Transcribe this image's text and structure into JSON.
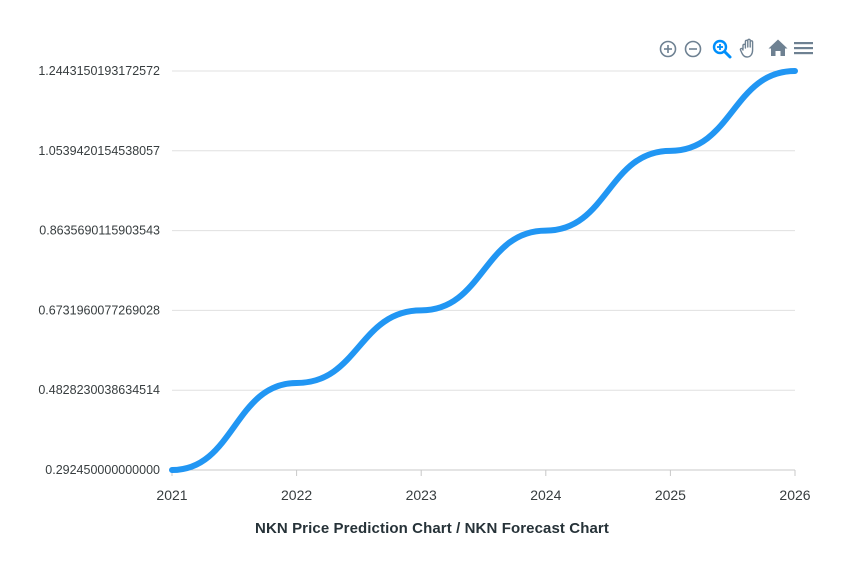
{
  "toolbar": {
    "buttons": [
      {
        "icon": "zoom-in-icon",
        "color": "#6e8192"
      },
      {
        "icon": "zoom-out-icon",
        "color": "#6e8192"
      },
      {
        "icon": "selection-zoom-icon",
        "color": "#008ffb"
      },
      {
        "icon": "pan-hand-icon",
        "color": "#6e8192"
      },
      {
        "icon": "reset-home-icon",
        "color": "#6e8192"
      },
      {
        "icon": "menu-icon",
        "color": "#6e8192"
      }
    ]
  },
  "chart_data": {
    "type": "line",
    "title": "NKN Price Prediction Chart / NKN Forecast Chart",
    "xlabel": "",
    "ylabel": "",
    "x_ticks": [
      "2021",
      "2022",
      "2023",
      "2024",
      "2025",
      "2026"
    ],
    "y_ticks": [
      "0.292450000000000",
      "0.4828230038634514",
      "0.6731960077269028",
      "0.8635690115903543",
      "1.0539420154538057",
      "1.2443150193172572"
    ],
    "ylim": [
      0.29245,
      1.2443150193172572
    ],
    "xlim": [
      2021,
      2026
    ],
    "grid": "horizontal",
    "legend": "none",
    "line_color": "#2196f3",
    "series": [
      {
        "x": [
          2021,
          2022,
          2023,
          2024,
          2025,
          2026
        ],
        "values": [
          0.29245,
          0.5,
          0.6732,
          0.8636,
          1.0539,
          1.2443
        ]
      }
    ]
  }
}
